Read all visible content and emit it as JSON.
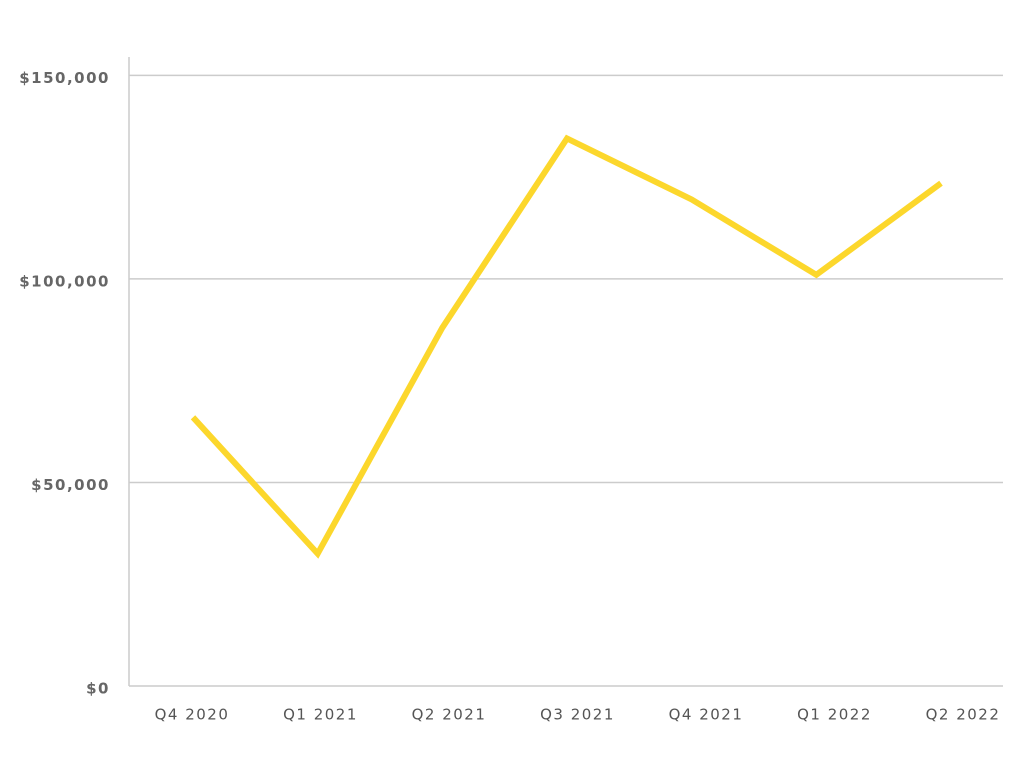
{
  "chart_data": {
    "type": "line",
    "categories": [
      "Q4 2020",
      "Q1 2021",
      "Q2 2021",
      "Q3 2021",
      "Q4 2021",
      "Q1 2022",
      "Q2 2022"
    ],
    "values": [
      66000,
      32500,
      88000,
      134500,
      119500,
      101000,
      123500
    ],
    "color": "#fcd72c",
    "ylim": [
      0,
      154500
    ],
    "yticks": [
      {
        "value": 0,
        "label": "$0"
      },
      {
        "value": 50000,
        "label": "$50,000"
      },
      {
        "value": 100000,
        "label": "$100,000"
      },
      {
        "value": 150000,
        "label": "$150,000"
      }
    ],
    "grid": true
  }
}
